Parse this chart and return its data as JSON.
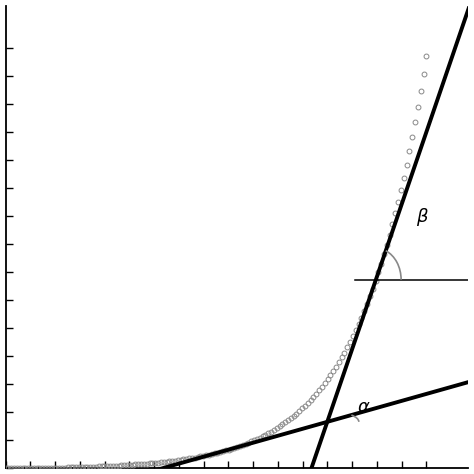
{
  "background_color": "#ffffff",
  "curve_color": "#888888",
  "line_color": "#000000",
  "angle_arc_color": "#888888",
  "alpha_label": "α",
  "beta_label": "β",
  "curve_A": 0.001,
  "curve_B": 0.65,
  "num_markers": 150,
  "marker_size": 3.5,
  "line_width": 2.8,
  "t1_x": 5.2,
  "t2_x": 8.8,
  "xlim": [
    0.0,
    11.0
  ],
  "ylim": [
    0.0,
    11.0
  ],
  "x_ticks_n": 18,
  "y_ticks_n": 16
}
